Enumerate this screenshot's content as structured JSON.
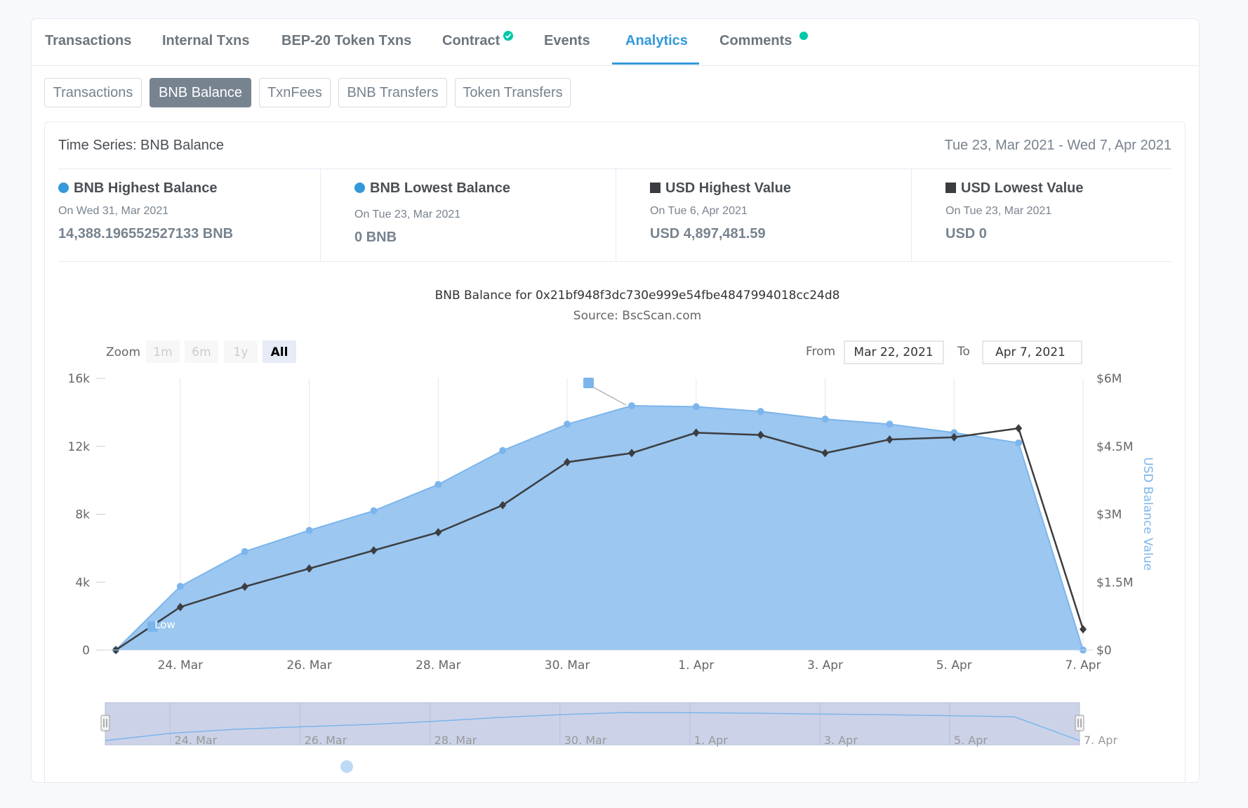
{
  "tabs": [
    {
      "label": "Transactions"
    },
    {
      "label": "Internal Txns"
    },
    {
      "label": "BEP-20 Token Txns"
    },
    {
      "label": "Contract"
    },
    {
      "label": "Events"
    },
    {
      "label": "Analytics"
    },
    {
      "label": "Comments"
    }
  ],
  "subtabs": [
    {
      "label": "Transactions"
    },
    {
      "label": "BNB Balance"
    },
    {
      "label": "TxnFees"
    },
    {
      "label": "BNB Transfers"
    },
    {
      "label": "Token Transfers"
    }
  ],
  "panel": {
    "title": "Time Series: BNB Balance",
    "range": "Tue 23, Mar 2021 - Wed 7, Apr 2021"
  },
  "stats": [
    {
      "title": "BNB Highest Balance",
      "date": "On Wed 31, Mar 2021",
      "value": "14,388.196552527133 BNB",
      "color": "#3498db",
      "shape": "circle"
    },
    {
      "title": "BNB Lowest Balance",
      "date": "On Tue 23, Mar 2021",
      "value": "0 BNB",
      "color": "#3498db",
      "shape": "circle"
    },
    {
      "title": "USD Highest Value",
      "date": "On Tue 6, Apr 2021",
      "value": "USD 4,897,481.59",
      "color": "#3b3d40",
      "shape": "square"
    },
    {
      "title": "USD Lowest Value",
      "date": "On Tue 23, Mar 2021",
      "value": "USD 0",
      "color": "#3b3d40",
      "shape": "square"
    }
  ],
  "colors": {
    "accent": "#3498db",
    "area_fill": "#9bc7f0",
    "area_line": "#7cb5ec",
    "usd_line": "#3b3d40",
    "status_dot": "#00c9a7"
  },
  "chart_controls": {
    "zoom_label": "Zoom",
    "zoom_buttons": [
      "1m",
      "6m",
      "1y",
      "All"
    ],
    "from_label": "From",
    "from_value": "Mar 22, 2021",
    "to_label": "To",
    "to_value": "Apr 7, 2021"
  },
  "chart_data": {
    "type": "area",
    "title": "BNB Balance for 0x21bf948f3dc730e999e54fbe4847994018cc24d8",
    "subtitle": "Source: BscScan.com",
    "x": [
      "2021-03-23",
      "2021-03-24",
      "2021-03-25",
      "2021-03-26",
      "2021-03-27",
      "2021-03-28",
      "2021-03-29",
      "2021-03-30",
      "2021-03-31",
      "2021-04-01",
      "2021-04-02",
      "2021-04-03",
      "2021-04-04",
      "2021-04-05",
      "2021-04-06",
      "2021-04-07"
    ],
    "x_tick_labels": [
      "24. Mar",
      "26. Mar",
      "28. Mar",
      "30. Mar",
      "1. Apr",
      "3. Apr",
      "5. Apr",
      "7. Apr"
    ],
    "series": [
      {
        "type": "area",
        "axis": "left",
        "values": [
          0,
          3750,
          5800,
          7050,
          8200,
          9750,
          11750,
          13300,
          14388,
          14330,
          14050,
          13600,
          13300,
          12800,
          12200,
          0
        ]
      },
      {
        "type": "line",
        "axis": "right",
        "values": [
          0,
          950000,
          1400000,
          1800000,
          2200000,
          2600000,
          3200000,
          4150000,
          4350000,
          4800000,
          4750000,
          4350000,
          4650000,
          4700000,
          4897481,
          460000
        ]
      }
    ],
    "y_left": {
      "ticks": [
        "0",
        "4k",
        "8k",
        "12k",
        "16k"
      ],
      "ylim": [
        0,
        16000
      ]
    },
    "y_right": {
      "label": "USD Balance Value",
      "ticks": [
        "$0",
        "$1.5M",
        "$3M",
        "$4.5M",
        "$6M"
      ],
      "ylim": [
        0,
        6000000
      ]
    },
    "flags": [
      {
        "text": "Low"
      }
    ],
    "navigator_labels": [
      "24. Mar",
      "26. Mar",
      "28. Mar",
      "30. Mar",
      "1. Apr",
      "3. Apr",
      "5. Apr",
      "7. Apr"
    ]
  }
}
